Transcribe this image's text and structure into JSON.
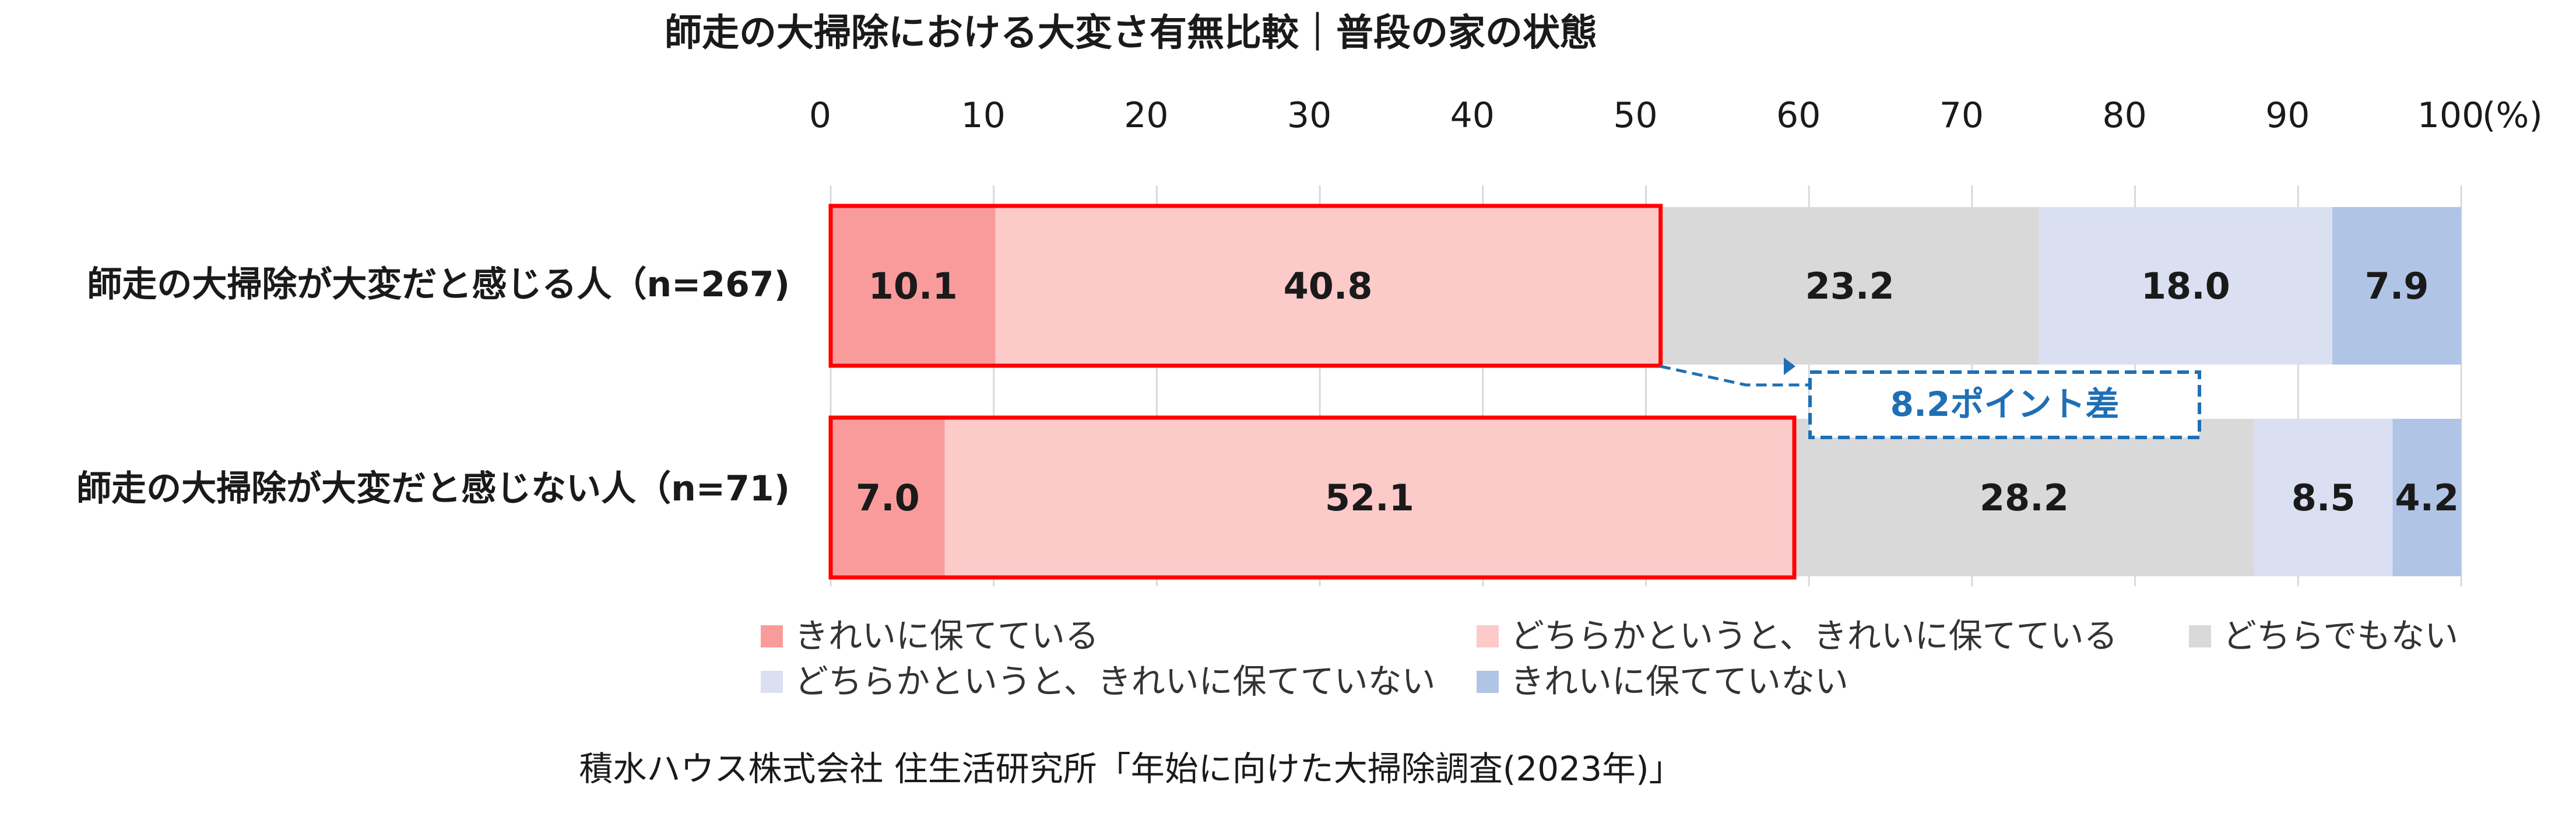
{
  "chart_data": {
    "type": "bar",
    "orientation": "horizontal-stacked-100",
    "title": "師走の大掃除における大変さ有無比較｜普段の家の状態",
    "unit_label": "(%)",
    "xlim": [
      0,
      100
    ],
    "xticks": [
      "0",
      "10",
      "20",
      "30",
      "40",
      "50",
      "60",
      "70",
      "80",
      "90",
      "100"
    ],
    "grid": true,
    "categories": [
      "師走の大掃除が大変だと感じる人（n=267)",
      "師走の大掃除が大変だと感じない人（n=71)"
    ],
    "series": [
      {
        "name": "きれいに保てている",
        "color": "#fa9b9b",
        "values": [
          10.1,
          7.0
        ],
        "labels": [
          "10.1",
          "7.0"
        ]
      },
      {
        "name": "どちらかというと、きれいに保てている",
        "color": "#fdcaca",
        "values": [
          40.8,
          52.1
        ],
        "labels": [
          "40.8",
          "52.1"
        ]
      },
      {
        "name": "どちらでもない",
        "color": "#d9d9d9",
        "values": [
          23.2,
          28.2
        ],
        "labels": [
          "23.2",
          "28.2"
        ]
      },
      {
        "name": "どちらかというと、きれいに保てていない",
        "color": "#dae0f2",
        "values": [
          18.0,
          8.5
        ],
        "labels": [
          "18.0",
          "8.5"
        ]
      },
      {
        "name": "きれいに保てていない",
        "color": "#b0c4e6",
        "values": [
          7.9,
          4.2
        ],
        "labels": [
          "7.9",
          "4.2"
        ]
      }
    ],
    "highlight_color": "#ff0000",
    "annotation": {
      "text": "8.2ポイント差",
      "color": "#1f6fb5"
    },
    "legend_position": "bottom"
  },
  "source": "積水ハウス株式会社 住生活研究所「年始に向けた大掃除調査(2023年)」"
}
